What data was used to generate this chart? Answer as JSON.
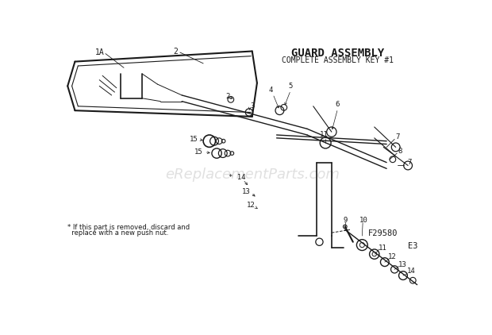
{
  "title": "GUARD ASSEMBLY",
  "subtitle": "COMPLETE ASSEMBLY KEY #1",
  "bg_color": "#ffffff",
  "fig_width": 6.2,
  "fig_height": 4.22,
  "dpi": 100,
  "watermark": "eReplacementParts.com",
  "footnote_line1": "* If this part is removed, discard and",
  "footnote_line2": "  replace with a new push nut.",
  "ref1": "F29580",
  "ref2": "E3",
  "line_color": "#1a1a1a",
  "text_color": "#1a1a1a"
}
